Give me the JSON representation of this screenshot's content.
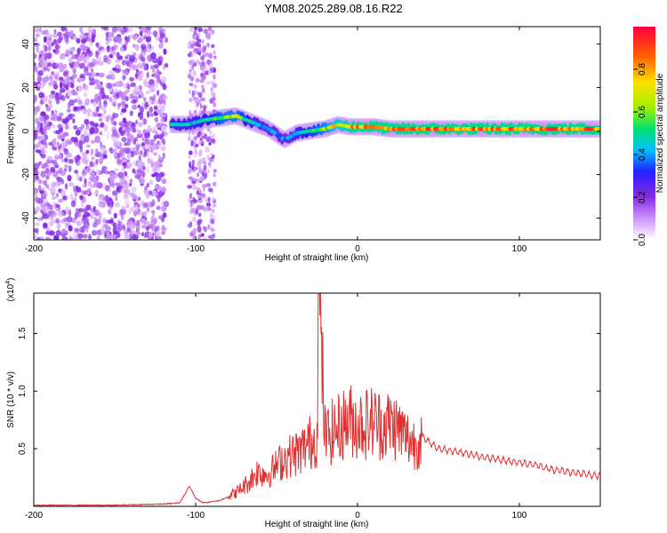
{
  "title": "YM08.2025.289.08.16.R22",
  "chart_data": [
    {
      "type": "heatmap",
      "xlabel": "Height of straight line (km)",
      "ylabel": "Frequency (Hz)",
      "xlim": [
        -200,
        150
      ],
      "ylim": [
        -50,
        48
      ],
      "xticks": [
        -200,
        -100,
        0,
        100
      ],
      "xtick_labels": [
        "-200",
        "-100",
        "0",
        "100"
      ],
      "yticks": [
        -40,
        -20,
        0,
        20,
        40
      ],
      "ytick_labels": [
        "-40",
        "-20",
        "0",
        "20",
        "40"
      ],
      "colorbar": {
        "label": "Normalized spectral amplitude",
        "range": [
          0,
          1
        ],
        "ticks": [
          0,
          0.2,
          0.4,
          0.6,
          0.8
        ],
        "tick_labels": [
          "0.0",
          "0.2",
          "0.4",
          "0.6",
          "0.8"
        ]
      },
      "noise_region_x": [
        -200,
        -118
      ],
      "noise_band_x": [
        -104,
        -88
      ],
      "ridge": {
        "x": [
          -115,
          -105,
          -95,
          -85,
          -75,
          -65,
          -55,
          -45,
          -38,
          -30,
          -20,
          -12,
          -5,
          0,
          10,
          20,
          40,
          60,
          80,
          100,
          120,
          150
        ],
        "freq": [
          3,
          3,
          5,
          6,
          7,
          4,
          1,
          -4,
          -1,
          0,
          1,
          3,
          2,
          2,
          2,
          1,
          1,
          1,
          1,
          1,
          1,
          1
        ],
        "amplitude": [
          0.5,
          0.5,
          0.55,
          0.65,
          0.7,
          0.5,
          0.45,
          0.4,
          0.5,
          0.6,
          0.7,
          0.8,
          0.85,
          0.9,
          0.9,
          0.9,
          0.92,
          0.92,
          0.92,
          0.92,
          0.92,
          0.9
        ]
      }
    },
    {
      "type": "line",
      "xlabel": "Height of straight line (km)",
      "ylabel": "SNR (10 * v/v)",
      "y_multiplier_label": "(x10",
      "y_multiplier_exp": "4",
      "xlim": [
        -200,
        150
      ],
      "ylim": [
        0,
        1.85
      ],
      "xticks": [
        -200,
        -100,
        0,
        100
      ],
      "xtick_labels": [
        "-200",
        "-100",
        "0",
        "100"
      ],
      "yticks": [
        0.5,
        1.0,
        1.5
      ],
      "ytick_labels": [
        "0.5",
        "1.0",
        "1.5"
      ],
      "series": [
        {
          "color": "#e03030",
          "x": [
            -200,
            -150,
            -120,
            -110,
            -106,
            -104,
            -100,
            -95,
            -85,
            -75,
            -68,
            -62,
            -55,
            -50,
            -45,
            -40,
            -35,
            -30,
            -25,
            -24,
            -20,
            -15,
            -10,
            -5,
            0,
            5,
            10,
            15,
            20,
            25,
            30,
            35,
            40,
            45,
            50,
            60,
            70,
            80,
            90,
            100,
            110,
            120,
            130,
            140,
            150
          ],
          "y": [
            0.01,
            0.01,
            0.02,
            0.03,
            0.12,
            0.18,
            0.07,
            0.03,
            0.05,
            0.12,
            0.2,
            0.3,
            0.28,
            0.35,
            0.42,
            0.45,
            0.48,
            0.55,
            0.6,
            1.85,
            0.6,
            0.65,
            0.7,
            0.75,
            0.72,
            0.72,
            0.74,
            0.7,
            0.72,
            0.68,
            0.6,
            0.55,
            0.6,
            0.55,
            0.5,
            0.48,
            0.45,
            0.42,
            0.4,
            0.38,
            0.36,
            0.32,
            0.3,
            0.28,
            0.26
          ]
        }
      ]
    }
  ]
}
